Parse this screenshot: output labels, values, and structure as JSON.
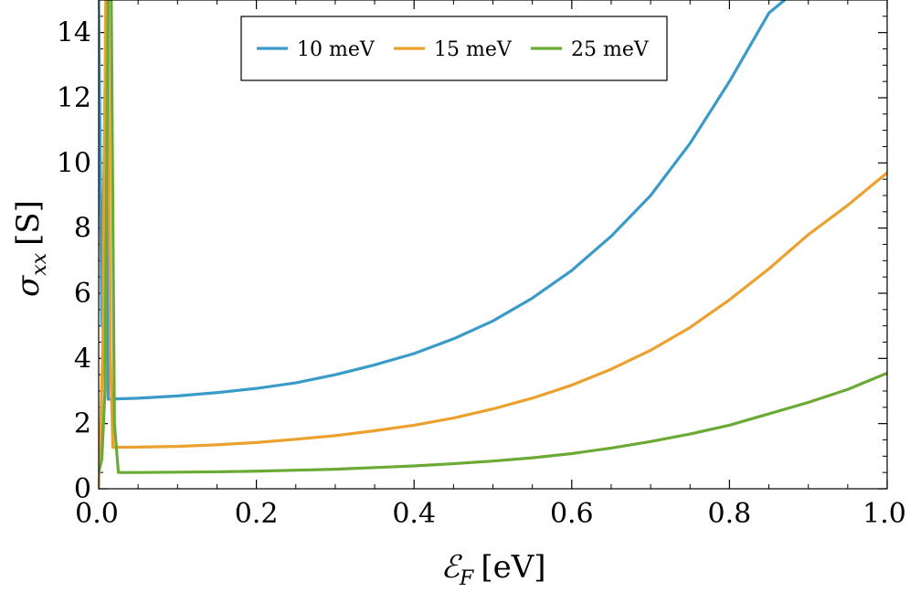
{
  "chart_data": {
    "type": "line",
    "title": "",
    "xlabel": {
      "symbol": "ℰ",
      "subscript": "F",
      "unit": "[eV]"
    },
    "ylabel": {
      "symbol": "σ",
      "subscript": "xx",
      "unit": "[S]"
    },
    "xlim": [
      0.0,
      1.0
    ],
    "ylim": [
      0,
      15
    ],
    "x_ticks": [
      "0.0",
      "0.2",
      "0.4",
      "0.6",
      "0.8",
      "1.0"
    ],
    "x_tick_values": [
      0.0,
      0.2,
      0.4,
      0.6,
      0.8,
      1.0
    ],
    "y_ticks": [
      "0",
      "2",
      "4",
      "6",
      "8",
      "10",
      "12",
      "14"
    ],
    "y_tick_values": [
      0,
      2,
      4,
      6,
      8,
      10,
      12,
      14
    ],
    "grid": false,
    "legend_position": "top-center",
    "series": [
      {
        "name": "10 meV",
        "color": "#3a9bc9",
        "x": [
          0.0,
          0.004,
          0.008,
          0.01,
          0.012,
          0.05,
          0.1,
          0.15,
          0.2,
          0.25,
          0.3,
          0.35,
          0.4,
          0.45,
          0.5,
          0.55,
          0.6,
          0.65,
          0.7,
          0.75,
          0.8,
          0.85,
          0.87
        ],
        "y": [
          15,
          5.0,
          12.0,
          15,
          2.75,
          2.78,
          2.85,
          2.95,
          3.08,
          3.25,
          3.5,
          3.8,
          4.15,
          4.6,
          5.15,
          5.85,
          6.7,
          7.75,
          9.0,
          10.6,
          12.5,
          14.6,
          15
        ]
      },
      {
        "name": "15 meV",
        "color": "#eca12f",
        "x": [
          0.0,
          0.005,
          0.009,
          0.012,
          0.015,
          0.018,
          0.05,
          0.1,
          0.15,
          0.2,
          0.25,
          0.3,
          0.35,
          0.4,
          0.45,
          0.5,
          0.55,
          0.6,
          0.65,
          0.7,
          0.75,
          0.8,
          0.85,
          0.9,
          0.95,
          1.0
        ],
        "y": [
          0.0,
          4.0,
          15,
          15,
          4.0,
          1.27,
          1.28,
          1.3,
          1.35,
          1.42,
          1.52,
          1.63,
          1.78,
          1.95,
          2.17,
          2.45,
          2.78,
          3.18,
          3.67,
          4.25,
          4.95,
          5.8,
          6.75,
          7.8,
          8.7,
          9.7
        ]
      },
      {
        "name": "25 meV",
        "color": "#6aaa35",
        "x": [
          0.0,
          0.004,
          0.008,
          0.012,
          0.016,
          0.02,
          0.025,
          0.05,
          0.1,
          0.15,
          0.2,
          0.25,
          0.3,
          0.35,
          0.4,
          0.45,
          0.5,
          0.55,
          0.6,
          0.65,
          0.7,
          0.75,
          0.8,
          0.85,
          0.9,
          0.95,
          1.0
        ],
        "y": [
          0.5,
          0.9,
          3.0,
          15,
          15,
          2.0,
          0.5,
          0.5,
          0.51,
          0.52,
          0.54,
          0.57,
          0.6,
          0.65,
          0.7,
          0.77,
          0.85,
          0.95,
          1.08,
          1.25,
          1.45,
          1.68,
          1.95,
          2.3,
          2.65,
          3.05,
          3.55
        ]
      }
    ]
  }
}
